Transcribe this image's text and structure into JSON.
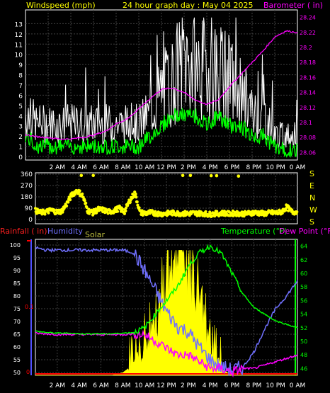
{
  "header": {
    "left": "Windspeed (mph)",
    "center": "24 hour graph day : May 04 2025",
    "right": "Barometer ( in)"
  },
  "hour_labels": [
    "2 AM",
    "4 AM",
    "6 AM",
    "8 AM",
    "10 AM",
    "12 PM",
    "2 PM",
    "4 PM",
    "6 PM",
    "8 PM",
    "10 PM",
    "0 AM"
  ],
  "colors": {
    "bg": "#000000",
    "frame": "#ffffff",
    "grid": "#404040",
    "header": "#ffff00",
    "barometer": "#ff00ff",
    "wind_gust": "#ffffff",
    "wind_avg": "#00ff00",
    "direction": "#ffff00",
    "rain": "#ff0000",
    "humidity": "#7070ff",
    "solar": "#ffff00",
    "solar_label": "#c0c040",
    "temperature": "#00ff00",
    "dewpoint": "#ff00ff"
  },
  "chart_data": [
    {
      "type": "line",
      "title": "24 hour graph day : May 04 2025",
      "ylabel": "Windspeed (mph)",
      "y2label": "Barometer ( in)",
      "ylim": [
        0,
        14
      ],
      "y_ticks": [
        "0",
        "1",
        "2",
        "3",
        "4",
        "5",
        "6",
        "7",
        "8",
        "9",
        "10",
        "11",
        "12",
        "13"
      ],
      "y2lim": [
        28.05,
        28.25
      ],
      "y2_ticks": [
        "28.06",
        "28.08",
        "28.1",
        "28.12",
        "28.14",
        "28.16",
        "28.18",
        "28.2",
        "28.22",
        "28.24"
      ],
      "x": [
        0,
        1,
        2,
        3,
        4,
        5,
        6,
        7,
        8,
        9,
        10,
        11,
        12,
        13,
        14,
        15,
        16,
        17,
        18,
        19,
        20,
        21,
        22,
        23,
        24
      ],
      "series": [
        {
          "name": "Windspeed (mph)",
          "axis": "left",
          "values": [
            4,
            3,
            3,
            3,
            3,
            3,
            3,
            3,
            3,
            3,
            3,
            4,
            6,
            7,
            9,
            8,
            8,
            8,
            7,
            6,
            4,
            4,
            2,
            2,
            2
          ]
        },
        {
          "name": "Wind avg",
          "axis": "left",
          "values": [
            2,
            1,
            1,
            1,
            1,
            1,
            1,
            1,
            1,
            1,
            1,
            2,
            3,
            4,
            4,
            4,
            3,
            4,
            3,
            3,
            2,
            2,
            1,
            0.5,
            0.5
          ]
        },
        {
          "name": "Barometer ( in)",
          "axis": "right",
          "values": [
            28.084,
            28.081,
            28.08,
            28.078,
            28.078,
            28.08,
            28.083,
            28.088,
            28.098,
            28.105,
            28.118,
            28.132,
            28.144,
            28.146,
            28.14,
            28.13,
            28.124,
            28.13,
            28.148,
            28.164,
            28.18,
            28.196,
            28.214,
            28.222,
            28.22
          ]
        }
      ],
      "grid": true
    },
    {
      "type": "scatter",
      "title": "",
      "ylabel": "",
      "ylim": [
        0,
        360
      ],
      "y_ticks": [
        "0",
        "90",
        "180",
        "270",
        "360"
      ],
      "compass_labels": [
        "S",
        "E",
        "N",
        "W",
        "S"
      ],
      "x": [
        0,
        0.5,
        1,
        1.5,
        2,
        2.5,
        3,
        3.3,
        3.6,
        4,
        4.5,
        5,
        5.5,
        6,
        6.5,
        7,
        7.5,
        8,
        8.3,
        8.6,
        9,
        9.5,
        10,
        10.5,
        11,
        11.5,
        12,
        12.5,
        13,
        13.5,
        14,
        14.5,
        15,
        15.5,
        16,
        16.5,
        17,
        17.5,
        18,
        18.5,
        19,
        19.5,
        20,
        20.5,
        21,
        21.5,
        22,
        22.5,
        23,
        23.5
      ],
      "values": [
        70,
        55,
        60,
        75,
        60,
        65,
        125,
        200,
        230,
        190,
        70,
        55,
        80,
        75,
        60,
        70,
        90,
        60,
        150,
        210,
        55,
        50,
        55,
        50,
        45,
        48,
        52,
        50,
        48,
        47,
        50,
        48,
        50,
        40,
        45,
        48,
        52,
        45,
        50,
        48,
        45,
        52,
        55,
        50,
        48,
        55,
        52,
        60,
        100,
        60
      ],
      "highlights": [
        {
          "x": 4.2,
          "value": 350
        },
        {
          "x": 5.3,
          "value": 350
        },
        {
          "x": 13.5,
          "value": 350
        },
        {
          "x": 14.2,
          "value": 350
        },
        {
          "x": 16.1,
          "value": 348
        },
        {
          "x": 16.6,
          "value": 348
        },
        {
          "x": 18.6,
          "value": 345
        }
      ],
      "grid": true
    },
    {
      "type": "line",
      "title": "",
      "ylabel": "Humidity",
      "y_left_label_rain": "Rainfall ( in)",
      "solar_label": "Solar",
      "y2label": "Temperature (°F)",
      "y3label": "Dew Point (°F)",
      "ylim": [
        50,
        100
      ],
      "y_ticks": [
        "50",
        "55",
        "60",
        "65",
        "70",
        "75",
        "80",
        "85",
        "90",
        "95",
        "100"
      ],
      "rain_ticks": [
        "0",
        "0.1"
      ],
      "y2lim": [
        45,
        65
      ],
      "y2_ticks": [
        "46",
        "48",
        "50",
        "52",
        "54",
        "56",
        "58",
        "60",
        "62",
        "64"
      ],
      "x": [
        0,
        1,
        2,
        3,
        4,
        5,
        6,
        7,
        8,
        9,
        10,
        11,
        12,
        13,
        14,
        15,
        16,
        17,
        18,
        19,
        20,
        21,
        22,
        23,
        24
      ],
      "series": [
        {
          "name": "Humidity",
          "axis": "left",
          "values": [
            99,
            98,
            98,
            98,
            98,
            98,
            98,
            98,
            98,
            97,
            90,
            82,
            74,
            68,
            66,
            60,
            55,
            52,
            51,
            52,
            58,
            67,
            75,
            80,
            86
          ]
        },
        {
          "name": "Temperature (°F)",
          "axis": "right",
          "values": [
            51.5,
            51.3,
            51.2,
            51.2,
            51.1,
            51.1,
            51.1,
            51.1,
            51.2,
            51.3,
            52,
            54,
            56,
            58,
            61,
            63,
            64,
            63,
            60,
            57,
            55,
            54,
            53,
            52.5,
            52
          ]
        },
        {
          "name": "Dew Point (°F)",
          "axis": "right",
          "values": [
            51.2,
            51.1,
            51.0,
            51.0,
            51.0,
            51.0,
            51.0,
            51.0,
            51.0,
            51.1,
            51,
            50,
            49,
            48,
            48,
            47,
            46,
            46,
            45.5,
            46,
            46,
            46.5,
            47,
            47.5,
            48
          ]
        },
        {
          "name": "Solar",
          "axis": "solar",
          "values": [
            0,
            0,
            0,
            0,
            0,
            0,
            0,
            0,
            0.02,
            0.08,
            0.2,
            0.4,
            0.75,
            0.9,
            0.85,
            0.6,
            0.25,
            0.05,
            0,
            0,
            0,
            0,
            0,
            0,
            0
          ]
        }
      ],
      "rainfall_total": 0,
      "grid": true
    }
  ]
}
